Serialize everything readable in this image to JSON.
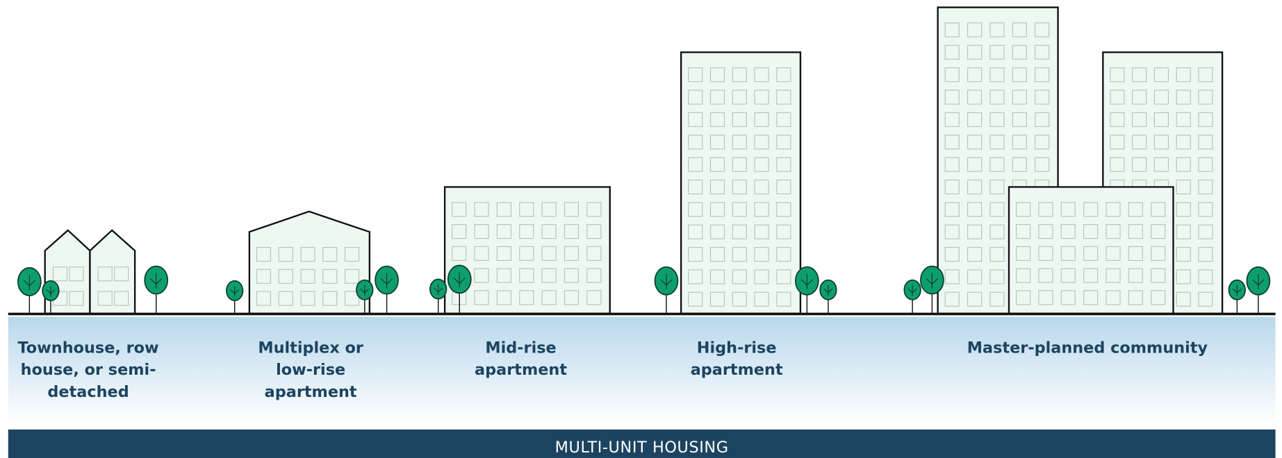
{
  "categories": [
    {
      "label": "Townhouse, row house, or semi-detached"
    },
    {
      "label": "Multiplex or low-rise apartment"
    },
    {
      "label": "Mid-rise apartment"
    },
    {
      "label": "High-rise apartment"
    },
    {
      "label": "Master-planned community"
    }
  ],
  "banner": "MULTI-UNIT HOUSING"
}
